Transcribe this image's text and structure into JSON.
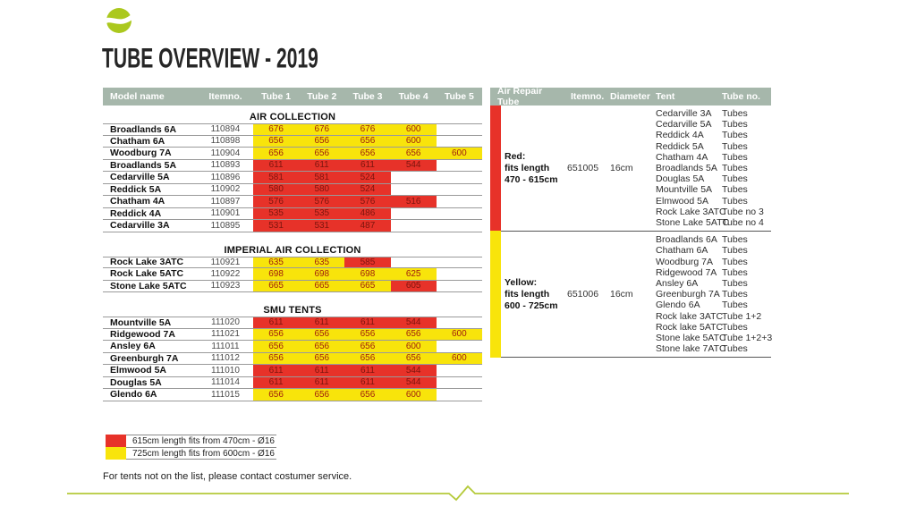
{
  "page": {
    "title": "TUBE OVERVIEW - 2019",
    "footnote": "For tents not on the list, please contact costumer service."
  },
  "colors": {
    "header_bg": "#a6b7ab",
    "red": "#e73229",
    "yellow": "#f8e40b",
    "text_on_red": "#7c150e",
    "text_on_yellow": "#9e1b0d",
    "brand_green": "#abc81e"
  },
  "tube_table": {
    "columns": [
      "Model name",
      "Itemno.",
      "Tube 1",
      "Tube 2",
      "Tube 3",
      "Tube 4",
      "Tube 5"
    ],
    "sections": [
      {
        "title": "AIR COLLECTION",
        "rows": [
          {
            "model": "Broadlands 6A",
            "itemno": "110894",
            "tubes": [
              [
                "676",
                "yellow"
              ],
              [
                "676",
                "yellow"
              ],
              [
                "676",
                "yellow"
              ],
              [
                "600",
                "yellow"
              ]
            ]
          },
          {
            "model": "Chatham 6A",
            "itemno": "110898",
            "tubes": [
              [
                "656",
                "yellow"
              ],
              [
                "656",
                "yellow"
              ],
              [
                "656",
                "yellow"
              ],
              [
                "600",
                "yellow"
              ]
            ]
          },
          {
            "model": "Woodburg 7A",
            "itemno": "110904",
            "tubes": [
              [
                "656",
                "yellow"
              ],
              [
                "656",
                "yellow"
              ],
              [
                "656",
                "yellow"
              ],
              [
                "656",
                "yellow"
              ],
              [
                "600",
                "yellow"
              ]
            ]
          },
          {
            "model": "Broadlands 5A",
            "itemno": "110893",
            "tubes": [
              [
                "611",
                "red"
              ],
              [
                "611",
                "red"
              ],
              [
                "611",
                "red"
              ],
              [
                "544",
                "red"
              ]
            ]
          },
          {
            "model": "Cedarville 5A",
            "itemno": "110896",
            "tubes": [
              [
                "581",
                "red"
              ],
              [
                "581",
                "red"
              ],
              [
                "524",
                "red"
              ]
            ]
          },
          {
            "model": "Reddick 5A",
            "itemno": "110902",
            "tubes": [
              [
                "580",
                "red"
              ],
              [
                "580",
                "red"
              ],
              [
                "524",
                "red"
              ]
            ]
          },
          {
            "model": "Chatham 4A",
            "itemno": "110897",
            "tubes": [
              [
                "576",
                "red"
              ],
              [
                "576",
                "red"
              ],
              [
                "576",
                "red"
              ],
              [
                "516",
                "red"
              ]
            ]
          },
          {
            "model": "Reddick 4A",
            "itemno": "110901",
            "tubes": [
              [
                "535",
                "red"
              ],
              [
                "535",
                "red"
              ],
              [
                "486",
                "red"
              ]
            ]
          },
          {
            "model": "Cedarville 3A",
            "itemno": "110895",
            "tubes": [
              [
                "531",
                "red"
              ],
              [
                "531",
                "red"
              ],
              [
                "487",
                "red"
              ]
            ]
          }
        ]
      },
      {
        "title": "IMPERIAL AIR COLLECTION",
        "rows": [
          {
            "model": "Rock Lake 3ATC",
            "itemno": "110921",
            "tubes": [
              [
                "635",
                "yellow"
              ],
              [
                "635",
                "yellow"
              ],
              [
                "585",
                "red"
              ]
            ]
          },
          {
            "model": "Rock Lake 5ATC",
            "itemno": "110922",
            "tubes": [
              [
                "698",
                "yellow"
              ],
              [
                "698",
                "yellow"
              ],
              [
                "698",
                "yellow"
              ],
              [
                "625",
                "yellow"
              ]
            ]
          },
          {
            "model": "Stone Lake 5ATC",
            "itemno": "110923",
            "tubes": [
              [
                "665",
                "yellow"
              ],
              [
                "665",
                "yellow"
              ],
              [
                "665",
                "yellow"
              ],
              [
                "605",
                "red"
              ]
            ]
          }
        ]
      },
      {
        "title": "SMU TENTS",
        "rows": [
          {
            "model": "Mountville 5A",
            "itemno": "111020",
            "tubes": [
              [
                "611",
                "red"
              ],
              [
                "611",
                "red"
              ],
              [
                "611",
                "red"
              ],
              [
                "544",
                "red"
              ]
            ]
          },
          {
            "model": "Ridgewood 7A",
            "itemno": "111021",
            "tubes": [
              [
                "656",
                "yellow"
              ],
              [
                "656",
                "yellow"
              ],
              [
                "656",
                "yellow"
              ],
              [
                "656",
                "yellow"
              ],
              [
                "600",
                "yellow"
              ]
            ]
          },
          {
            "model": "Ansley 6A",
            "itemno": "111011",
            "tubes": [
              [
                "656",
                "yellow"
              ],
              [
                "656",
                "yellow"
              ],
              [
                "656",
                "yellow"
              ],
              [
                "600",
                "yellow"
              ]
            ]
          },
          {
            "model": "Greenburgh 7A",
            "itemno": "111012",
            "tubes": [
              [
                "656",
                "yellow"
              ],
              [
                "656",
                "yellow"
              ],
              [
                "656",
                "yellow"
              ],
              [
                "656",
                "yellow"
              ],
              [
                "600",
                "yellow"
              ]
            ]
          },
          {
            "model": "Elmwood 5A",
            "itemno": "111010",
            "tubes": [
              [
                "611",
                "red"
              ],
              [
                "611",
                "red"
              ],
              [
                "611",
                "red"
              ],
              [
                "544",
                "red"
              ]
            ]
          },
          {
            "model": "Douglas 5A",
            "itemno": "111014",
            "tubes": [
              [
                "611",
                "red"
              ],
              [
                "611",
                "red"
              ],
              [
                "611",
                "red"
              ],
              [
                "544",
                "red"
              ]
            ]
          },
          {
            "model": "Glendo 6A",
            "itemno": "111015",
            "tubes": [
              [
                "656",
                "yellow"
              ],
              [
                "656",
                "yellow"
              ],
              [
                "656",
                "yellow"
              ],
              [
                "600",
                "yellow"
              ]
            ]
          }
        ]
      }
    ]
  },
  "repair_table": {
    "columns": [
      "Air Repair Tube",
      "Itemno.",
      "Diameter",
      "Tent",
      "Tube no."
    ],
    "sections": [
      {
        "color": "red",
        "label_lines": [
          "Red:",
          "fits length",
          "470 - 615cm"
        ],
        "itemno": "651005",
        "diameter": "16cm",
        "tents": [
          {
            "tent": "Cedarville 3A",
            "tube": "Tubes"
          },
          {
            "tent": "Cedarville 5A",
            "tube": "Tubes"
          },
          {
            "tent": "Reddick 4A",
            "tube": "Tubes"
          },
          {
            "tent": "Reddick 5A",
            "tube": "Tubes"
          },
          {
            "tent": "Chatham 4A",
            "tube": "Tubes"
          },
          {
            "tent": "Broadlands 5A",
            "tube": "Tubes"
          },
          {
            "tent": "Douglas 5A",
            "tube": "Tubes"
          },
          {
            "tent": "Mountville 5A",
            "tube": "Tubes"
          },
          {
            "tent": "Elmwood 5A",
            "tube": "Tubes"
          },
          {
            "tent": "Rock Lake 3ATC",
            "tube": "Tube no 3"
          },
          {
            "tent": "Stone Lake 5ATC",
            "tube": "Tube no 4"
          }
        ]
      },
      {
        "color": "yellow",
        "label_lines": [
          "Yellow:",
          "fits length",
          "600 - 725cm"
        ],
        "itemno": "651006",
        "diameter": "16cm",
        "tents": [
          {
            "tent": "Broadlands 6A",
            "tube": "Tubes"
          },
          {
            "tent": "Chatham 6A",
            "tube": "Tubes"
          },
          {
            "tent": "Woodburg 7A",
            "tube": "Tubes"
          },
          {
            "tent": "Ridgewood 7A",
            "tube": "Tubes"
          },
          {
            "tent": "Ansley 6A",
            "tube": "Tubes"
          },
          {
            "tent": "Greenburgh 7A",
            "tube": "Tubes"
          },
          {
            "tent": "Glendo 6A",
            "tube": "Tubes"
          },
          {
            "tent": "Rock lake 3ATC",
            "tube": "Tube 1+2"
          },
          {
            "tent": "Rock lake 5ATC",
            "tube": "Tubes"
          },
          {
            "tent": "Stone lake 5ATC",
            "tube": "Tube 1+2+3"
          },
          {
            "tent": "Stone lake 7ATC",
            "tube": "Tubes"
          }
        ]
      }
    ]
  },
  "legend": [
    {
      "color": "red",
      "label": "615cm length fits from 470cm - Ø16"
    },
    {
      "color": "yellow",
      "label": "725cm length fits from 600cm - Ø16"
    }
  ]
}
